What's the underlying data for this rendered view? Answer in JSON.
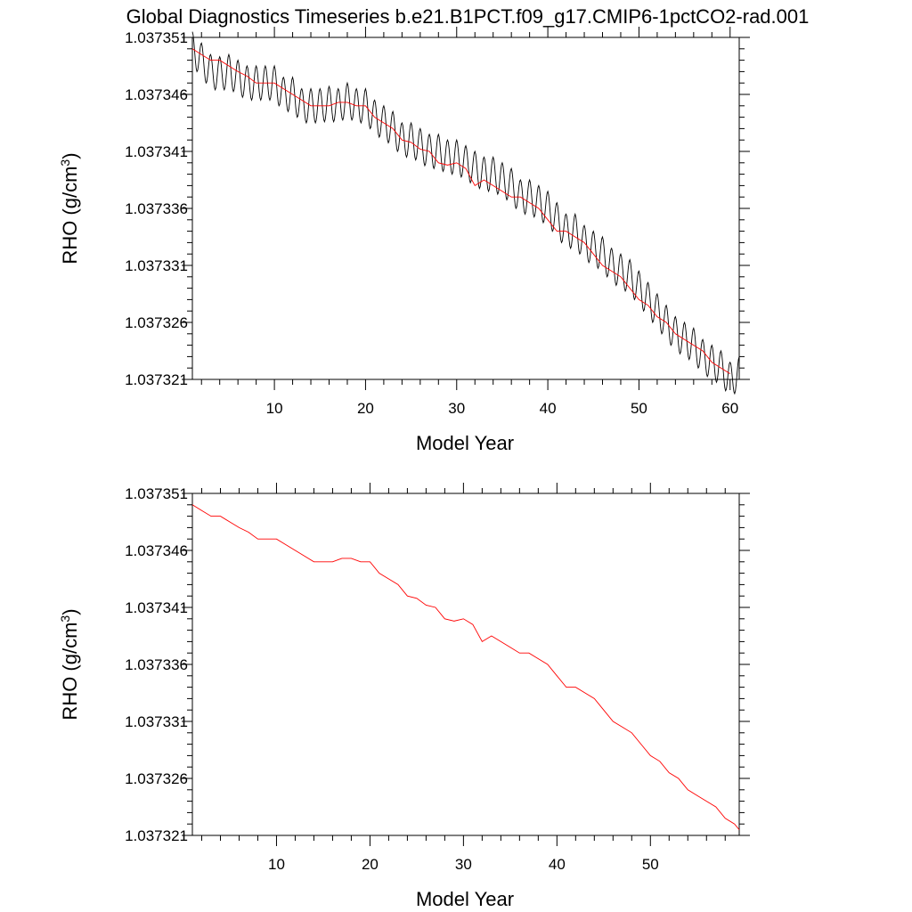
{
  "title": "Global Diagnostics Timeseries b.e21.B1PCT.f09_g17.CMIP6-1pctCO2-rad.001",
  "chart_data": [
    {
      "type": "line",
      "title": "",
      "xlabel": "Model Year",
      "ylabel_main": "RHO (g/cm",
      "ylabel_sup": "3",
      "ylabel_tail": ")",
      "xlim": [
        1,
        61
      ],
      "ylim": [
        1.037321,
        1.037351
      ],
      "xticks": [
        "10",
        "20",
        "30",
        "40",
        "50",
        "60"
      ],
      "xtick_values": [
        10,
        20,
        30,
        40,
        50,
        60
      ],
      "yticks": [
        "1.037321",
        "1.037326",
        "1.037331",
        "1.037336",
        "1.037341",
        "1.037346",
        "1.037351"
      ],
      "ytick_values": [
        1.037321,
        1.037326,
        1.037331,
        1.037336,
        1.037341,
        1.037346,
        1.037351
      ],
      "grid": false,
      "series": [
        {
          "color": "#000000",
          "style": "monthly",
          "amplitude": 1.5e-06,
          "x": [
            1,
            61
          ],
          "baseline_x": [
            1,
            2,
            3,
            4,
            5,
            6,
            7,
            8,
            9,
            10,
            11,
            12,
            13,
            14,
            15,
            16,
            17,
            18,
            19,
            20,
            21,
            22,
            23,
            24,
            25,
            26,
            27,
            28,
            29,
            30,
            31,
            32,
            33,
            34,
            35,
            36,
            37,
            38,
            39,
            40,
            41,
            42,
            43,
            44,
            45,
            46,
            47,
            48,
            49,
            50,
            51,
            52,
            53,
            54,
            55,
            56,
            57,
            58,
            59,
            60,
            61
          ],
          "baseline_values": [
            1.03735,
            1.037349,
            1.037348,
            1.0373478,
            1.037348,
            1.0373475,
            1.037347,
            1.037347,
            1.037347,
            1.037347,
            1.037346,
            1.037346,
            1.037345,
            1.037345,
            1.037345,
            1.0373452,
            1.037345,
            1.0373455,
            1.037345,
            1.037345,
            1.037344,
            1.0373435,
            1.037343,
            1.037342,
            1.037342,
            1.0373415,
            1.037341,
            1.037341,
            1.0373405,
            1.0373405,
            1.03734,
            1.0373395,
            1.037339,
            1.037339,
            1.0373385,
            1.037338,
            1.037337,
            1.037337,
            1.0373365,
            1.037336,
            1.037335,
            1.037334,
            1.037334,
            1.037333,
            1.0373325,
            1.037332,
            1.037331,
            1.0373305,
            1.03733,
            1.037329,
            1.037328,
            1.037327,
            1.037326,
            1.037325,
            1.0373245,
            1.037324,
            1.037323,
            1.0373225,
            1.037322,
            1.037321,
            1.0373215
          ]
        },
        {
          "color": "#ff0000",
          "style": "annual",
          "x": [
            1,
            2,
            3,
            4,
            5,
            6,
            7,
            8,
            9,
            10,
            11,
            12,
            13,
            14,
            15,
            16,
            17,
            18,
            19,
            20,
            21,
            22,
            23,
            24,
            25,
            26,
            27,
            28,
            29,
            30,
            31,
            32,
            33,
            34,
            35,
            36,
            37,
            38,
            39,
            40,
            41,
            42,
            43,
            44,
            45,
            46,
            47,
            48,
            49,
            50,
            51,
            52,
            53,
            54,
            55,
            56,
            57,
            58,
            59,
            60
          ],
          "values": [
            1.03735,
            1.0373495,
            1.037349,
            1.037349,
            1.0373485,
            1.037348,
            1.0373476,
            1.037347,
            1.037347,
            1.037347,
            1.0373465,
            1.037346,
            1.0373455,
            1.037345,
            1.037345,
            1.037345,
            1.0373453,
            1.0373453,
            1.037345,
            1.037345,
            1.037344,
            1.0373435,
            1.037343,
            1.037342,
            1.0373418,
            1.0373412,
            1.037341,
            1.03734,
            1.0373398,
            1.03734,
            1.0373395,
            1.037338,
            1.0373385,
            1.037338,
            1.0373375,
            1.037337,
            1.037337,
            1.0373365,
            1.037336,
            1.037335,
            1.037334,
            1.037334,
            1.0373335,
            1.037333,
            1.037332,
            1.037331,
            1.0373305,
            1.03733,
            1.037329,
            1.037328,
            1.0373275,
            1.0373265,
            1.037326,
            1.037325,
            1.0373245,
            1.037324,
            1.0373235,
            1.0373225,
            1.037322,
            1.0373215
          ]
        }
      ]
    },
    {
      "type": "line",
      "title": "",
      "xlabel": "Model Year",
      "ylabel_main": "RHO (g/cm",
      "ylabel_sup": "3",
      "ylabel_tail": ")",
      "xlim": [
        1,
        59.5
      ],
      "ylim": [
        1.037321,
        1.037351
      ],
      "xticks": [
        "10",
        "20",
        "30",
        "40",
        "50"
      ],
      "xtick_values": [
        10,
        20,
        30,
        40,
        50
      ],
      "yticks": [
        "1.037321",
        "1.037326",
        "1.037331",
        "1.037336",
        "1.037341",
        "1.037346",
        "1.037351"
      ],
      "ytick_values": [
        1.037321,
        1.037326,
        1.037331,
        1.037336,
        1.037341,
        1.037346,
        1.037351
      ],
      "grid": false,
      "series": [
        {
          "color": "#ff0000",
          "style": "annual",
          "x": [
            1,
            2,
            3,
            4,
            5,
            6,
            7,
            8,
            9,
            10,
            11,
            12,
            13,
            14,
            15,
            16,
            17,
            18,
            19,
            20,
            21,
            22,
            23,
            24,
            25,
            26,
            27,
            28,
            29,
            30,
            31,
            32,
            33,
            34,
            35,
            36,
            37,
            38,
            39,
            40,
            41,
            42,
            43,
            44,
            45,
            46,
            47,
            48,
            49,
            50,
            51,
            52,
            53,
            54,
            55,
            56,
            57,
            58,
            59,
            59.5
          ],
          "values": [
            1.03735,
            1.0373495,
            1.037349,
            1.037349,
            1.0373485,
            1.037348,
            1.0373476,
            1.037347,
            1.037347,
            1.037347,
            1.0373465,
            1.037346,
            1.0373455,
            1.037345,
            1.037345,
            1.037345,
            1.0373453,
            1.0373453,
            1.037345,
            1.037345,
            1.037344,
            1.0373435,
            1.037343,
            1.037342,
            1.0373418,
            1.0373412,
            1.037341,
            1.03734,
            1.0373398,
            1.03734,
            1.0373395,
            1.037338,
            1.0373385,
            1.037338,
            1.0373375,
            1.037337,
            1.037337,
            1.0373365,
            1.037336,
            1.037335,
            1.037334,
            1.037334,
            1.0373335,
            1.037333,
            1.037332,
            1.037331,
            1.0373305,
            1.03733,
            1.037329,
            1.037328,
            1.0373275,
            1.0373265,
            1.037326,
            1.037325,
            1.0373245,
            1.037324,
            1.0373235,
            1.0373225,
            1.037322,
            1.0373215
          ]
        }
      ]
    }
  ]
}
